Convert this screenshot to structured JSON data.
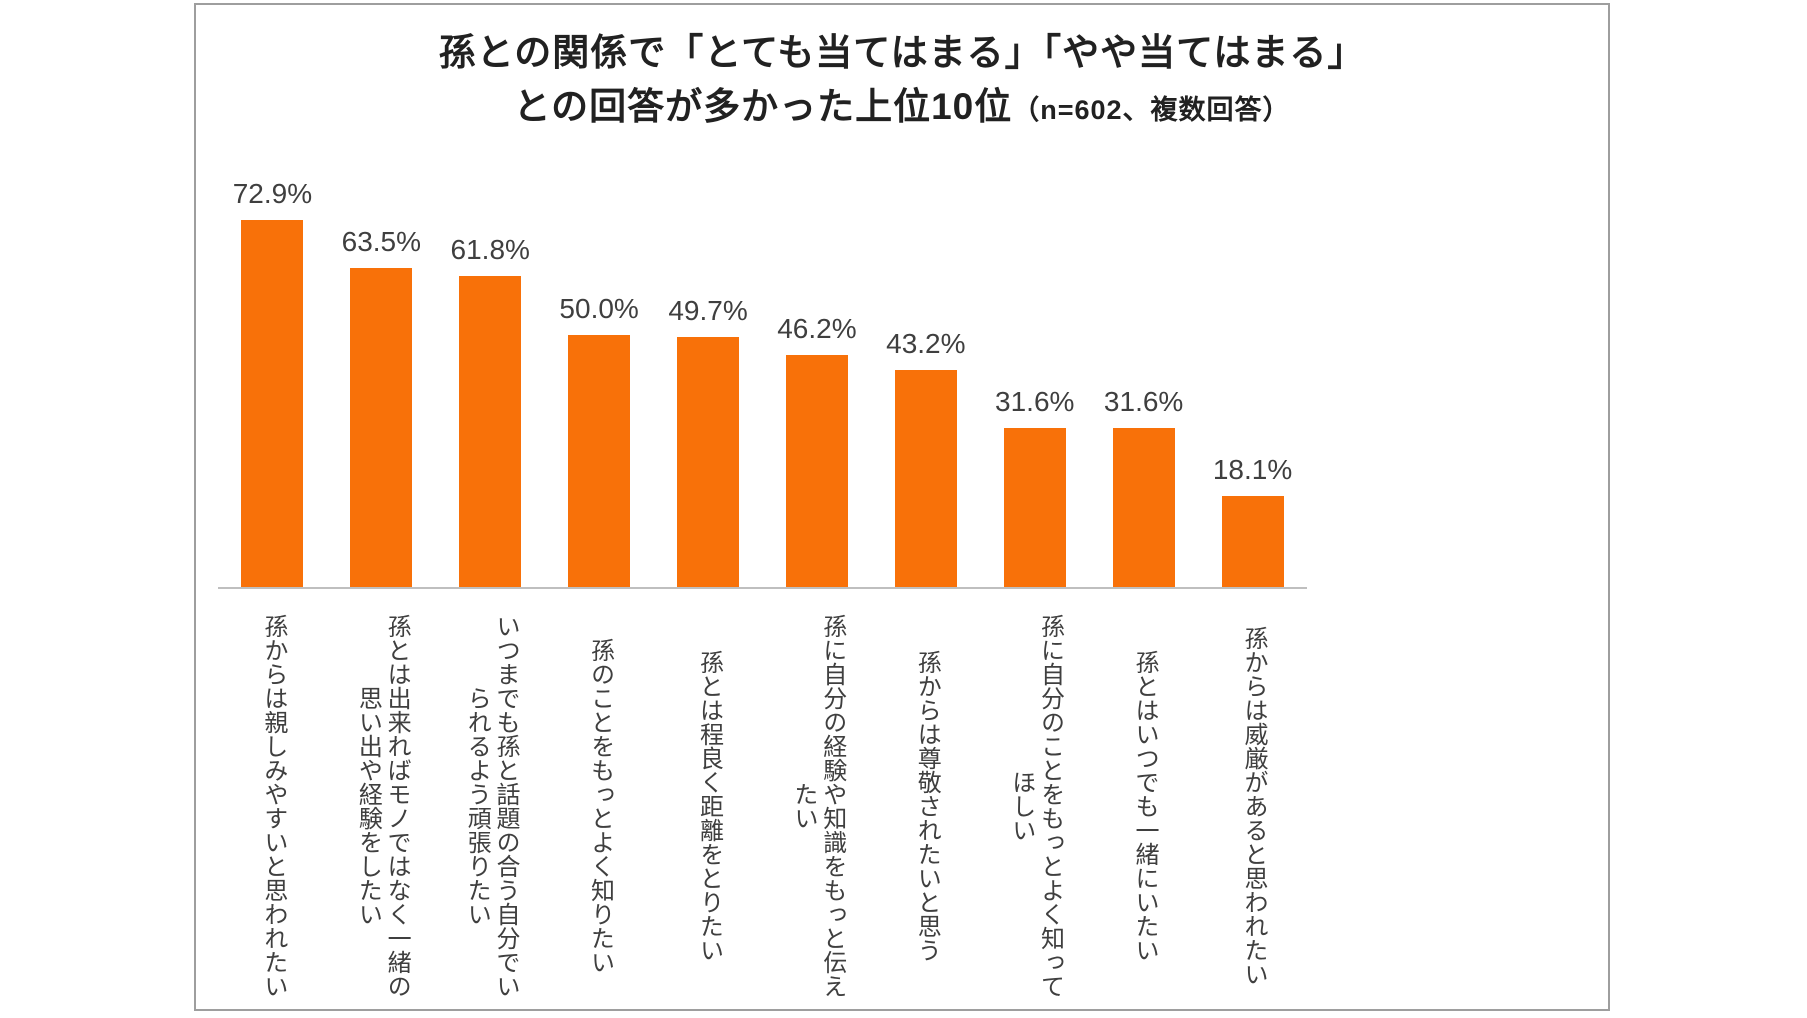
{
  "chart_data": {
    "type": "bar",
    "title_line1": "孫との関係で「とても当てはまる」「やや当てはまる」",
    "title_line2_main": "との回答が多かった上位10位",
    "title_line2_note": "（n=602、複数回答）",
    "sample_size": 602,
    "answer_type": "複数回答",
    "unit": "%",
    "categories": [
      [
        "孫からは親しみやすいと思われたい"
      ],
      [
        "孫とは出来ればモノではなく一緒の",
        "思い出や経験をしたい"
      ],
      [
        "いつまでも孫と話題の合う自分でい",
        "られるよう頑張りたい"
      ],
      [
        "孫のことをもっとよく知りたい"
      ],
      [
        "孫とは程良く距離をとりたい"
      ],
      [
        "孫に自分の経験や知識をもっと伝え",
        "たい"
      ],
      [
        "孫からは尊敬されたいと思う"
      ],
      [
        "孫に自分のことをもっとよく知って",
        "ほしい"
      ],
      [
        "孫とはいつでも一緒にいたい"
      ],
      [
        "孫からは威厳があると思われたい"
      ]
    ],
    "values": [
      72.9,
      63.5,
      61.8,
      50.0,
      49.7,
      46.2,
      43.2,
      31.6,
      31.6,
      18.1
    ],
    "value_labels": [
      "72.9%",
      "63.5%",
      "61.8%",
      "50.0%",
      "49.7%",
      "46.2%",
      "43.2%",
      "31.6%",
      "31.6%",
      "18.1%"
    ],
    "ylim": [
      0,
      80
    ],
    "bar_color": "#F87109",
    "value_label_color": "#3f3f3f",
    "axis_color": "#bfbfbf",
    "grid": "off",
    "legend": "none",
    "xlabel": "",
    "ylabel": ""
  }
}
